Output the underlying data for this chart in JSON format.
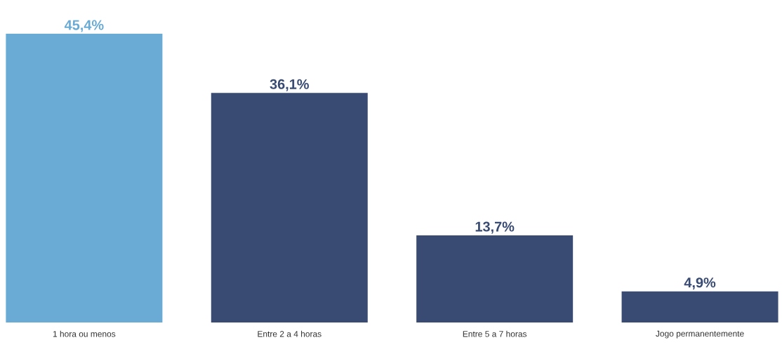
{
  "chart_data": {
    "type": "bar",
    "categories": [
      "1 hora ou menos",
      "Entre 2 a 4 horas",
      "Entre 5 a 7 horas",
      "Jogo permanentemente"
    ],
    "values": [
      45.4,
      36.1,
      13.7,
      4.9
    ],
    "colors": [
      "#6aabd6",
      "#394b72",
      "#394b72",
      "#394b72"
    ],
    "value_labels": [
      "45,4%",
      "36,1%",
      "13,7%",
      "4,9%"
    ]
  }
}
